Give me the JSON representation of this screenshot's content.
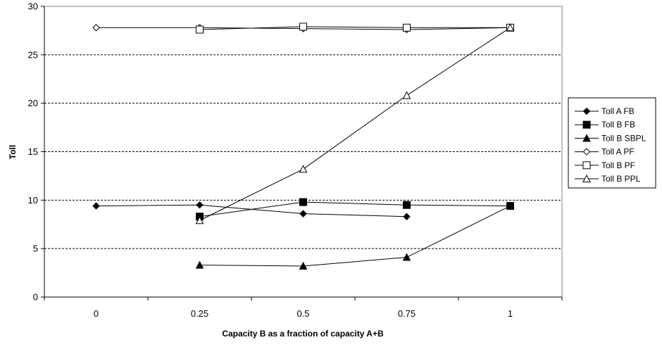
{
  "chart_data": {
    "type": "line",
    "title": "",
    "xlabel": "Capacity B as a fraction of capacity A+B",
    "ylabel": "Toll",
    "x_ticks": [
      "0",
      "0.25",
      "0.5",
      "0.75",
      "1"
    ],
    "y_ticks": [
      "0",
      "5",
      "10",
      "15",
      "20",
      "25",
      "30"
    ],
    "xlim": [
      -0.125,
      1.125
    ],
    "ylim": [
      0,
      30
    ],
    "grid": "horizontal-dashed",
    "legend_position": "right",
    "series": [
      {
        "name": "Toll A FB",
        "marker": "diamond-filled",
        "x": [
          0,
          0.25,
          0.5,
          0.75
        ],
        "y": [
          9.4,
          9.5,
          8.6,
          8.3
        ]
      },
      {
        "name": "Toll B FB",
        "marker": "square-filled",
        "x": [
          0.25,
          0.5,
          0.75,
          1
        ],
        "y": [
          8.3,
          9.8,
          9.5,
          9.4
        ]
      },
      {
        "name": "Toll B SBPL",
        "marker": "triangle-filled",
        "x": [
          0.25,
          0.5,
          0.75,
          1
        ],
        "y": [
          3.3,
          3.2,
          4.1,
          9.4
        ]
      },
      {
        "name": "Toll A PF",
        "marker": "diamond-open",
        "x": [
          0,
          0.25,
          0.5,
          0.75,
          1
        ],
        "y": [
          27.8,
          27.8,
          27.7,
          27.6,
          27.8
        ]
      },
      {
        "name": "Toll B PF",
        "marker": "square-open",
        "x": [
          0.25,
          0.5,
          0.75,
          1
        ],
        "y": [
          27.6,
          27.9,
          27.8,
          27.8
        ]
      },
      {
        "name": "Toll B PPL",
        "marker": "triangle-open",
        "x": [
          0.25,
          0.5,
          0.75,
          1
        ],
        "y": [
          7.9,
          13.2,
          20.8,
          27.8
        ]
      }
    ]
  }
}
